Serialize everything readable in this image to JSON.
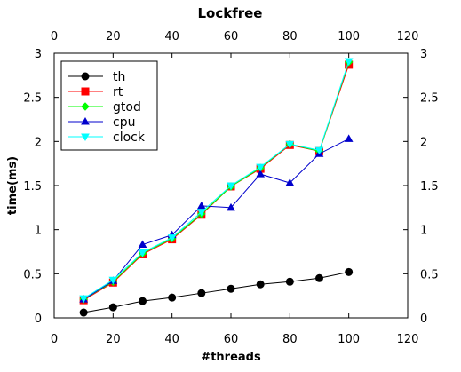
{
  "chart_data": {
    "type": "line",
    "title": "Lockfree",
    "xlabel": "#threads",
    "ylabel": "time(ms)",
    "xlim": [
      0,
      120
    ],
    "ylim": [
      0,
      3
    ],
    "xticks": [
      "0",
      "20",
      "40",
      "60",
      "80",
      "100",
      "120"
    ],
    "yticks": [
      "0",
      "0.5",
      "1",
      "1.5",
      "2",
      "2.5",
      "3"
    ],
    "grid": false,
    "legend_position": "top-left",
    "x": [
      10,
      20,
      30,
      40,
      50,
      60,
      70,
      80,
      90,
      100
    ],
    "series": [
      {
        "name": "th",
        "color": "#000000",
        "marker": "circle",
        "values": [
          0.06,
          0.12,
          0.19,
          0.23,
          0.28,
          0.33,
          0.38,
          0.41,
          0.45,
          0.52
        ]
      },
      {
        "name": "rt",
        "color": "#ff0000",
        "marker": "square",
        "values": [
          0.2,
          0.4,
          0.72,
          0.89,
          1.17,
          1.49,
          1.69,
          1.96,
          1.89,
          2.87
        ]
      },
      {
        "name": "gtod",
        "color": "#00ff00",
        "marker": "diamond",
        "values": [
          0.21,
          0.41,
          0.73,
          0.9,
          1.18,
          1.49,
          1.7,
          1.97,
          1.89,
          2.9
        ]
      },
      {
        "name": "cpu",
        "color": "#0000cc",
        "marker": "triangle-up",
        "values": [
          0.21,
          0.42,
          0.83,
          0.94,
          1.27,
          1.25,
          1.63,
          1.53,
          1.86,
          2.03
        ]
      },
      {
        "name": "clock",
        "color": "#00ffff",
        "marker": "triangle-down",
        "values": [
          0.22,
          0.43,
          0.74,
          0.91,
          1.2,
          1.5,
          1.71,
          1.97,
          1.9,
          2.91
        ]
      }
    ]
  }
}
